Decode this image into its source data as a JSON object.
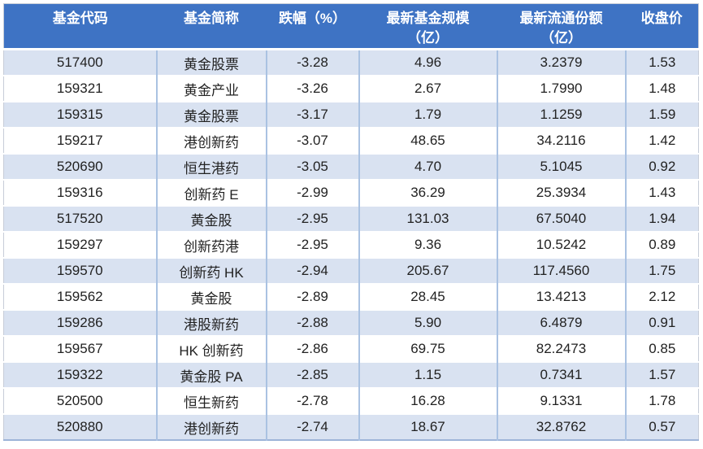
{
  "chart_data": {
    "type": "table",
    "title": "",
    "columns": [
      "基金代码",
      "基金简称",
      "跌幅（%）",
      "最新基金规模（亿）",
      "最新流通份额（亿）",
      "收盘价"
    ],
    "rows": [
      [
        "517400",
        "黄金股票",
        "-3.28",
        "4.96",
        "3.2379",
        "1.53"
      ],
      [
        "159321",
        "黄金产业",
        "-3.26",
        "2.67",
        "1.7990",
        "1.48"
      ],
      [
        "159315",
        "黄金股票",
        "-3.17",
        "1.79",
        "1.1259",
        "1.59"
      ],
      [
        "159217",
        "港创新药",
        "-3.07",
        "48.65",
        "34.2116",
        "1.42"
      ],
      [
        "520690",
        "恒生港药",
        "-3.05",
        "4.70",
        "5.1045",
        "0.92"
      ],
      [
        "159316",
        "创新药 E",
        "-2.99",
        "36.29",
        "25.3934",
        "1.43"
      ],
      [
        "517520",
        "黄金股",
        "-2.95",
        "131.03",
        "67.5040",
        "1.94"
      ],
      [
        "159297",
        "创新药港",
        "-2.95",
        "9.36",
        "10.5242",
        "0.89"
      ],
      [
        "159570",
        "创新药 HK",
        "-2.94",
        "205.67",
        "117.4560",
        "1.75"
      ],
      [
        "159562",
        "黄金股",
        "-2.89",
        "28.45",
        "13.4213",
        "2.12"
      ],
      [
        "159286",
        "港股新药",
        "-2.88",
        "5.90",
        "6.4879",
        "0.91"
      ],
      [
        "159567",
        "HK 创新药",
        "-2.86",
        "69.75",
        "82.2473",
        "0.85"
      ],
      [
        "159322",
        "黄金股 PA",
        "-2.85",
        "1.15",
        "0.7341",
        "1.57"
      ],
      [
        "520500",
        "恒生新药",
        "-2.78",
        "16.28",
        "9.1331",
        "1.78"
      ],
      [
        "520880",
        "港创新药",
        "-2.74",
        "18.67",
        "32.8762",
        "0.57"
      ]
    ],
    "layout_hints": {
      "header_rows": 1,
      "zebra_striping": true,
      "first_data_row_shaded": true
    }
  },
  "table": {
    "headers": [
      "基金代码",
      "基金简称",
      "跌幅（%）",
      "最新基金规模\n（亿）",
      "最新流通份额\n（亿）",
      "收盘价"
    ]
  },
  "colors": {
    "header_bg": "#3e73c4",
    "header_text": "#ffffff",
    "row_alt_bg": "#d9e2f1",
    "row_bg": "#ffffff",
    "grid_vertical_line": "#aac2e2",
    "row_gap_line": "#ffffff",
    "outer_border": "#c7cdd8",
    "bottom_border": "#9db4d8",
    "body_text": "#222222"
  }
}
